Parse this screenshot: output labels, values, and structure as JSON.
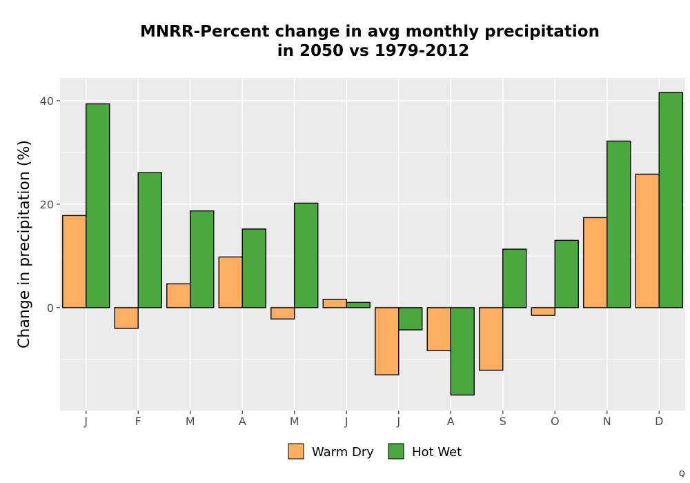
{
  "chart_data": {
    "type": "bar",
    "title_line1": "MNRR-Percent change in avg monthly precipitation",
    "title_line2": "in 2050 vs 1979-2012",
    "xlabel": "",
    "ylabel": "Change in precipitation (%)",
    "categories": [
      "J",
      "F",
      "M",
      "A",
      "M",
      "J",
      "J",
      "A",
      "S",
      "O",
      "N",
      "D"
    ],
    "series": [
      {
        "name": "Warm Dry",
        "color": "#fdae61",
        "values": [
          17.8,
          -4.0,
          4.6,
          9.8,
          -2.2,
          1.6,
          -13.0,
          -8.3,
          -12.1,
          -1.5,
          17.4,
          25.8
        ]
      },
      {
        "name": "Hot Wet",
        "color": "#4aa83f",
        "values": [
          39.4,
          26.1,
          18.7,
          15.2,
          20.2,
          1.0,
          -4.3,
          -16.9,
          11.3,
          13.0,
          32.2,
          41.6
        ]
      }
    ],
    "ylim": [
      -19.9,
      44.4
    ],
    "yticks": [
      0,
      20,
      40
    ],
    "grid": true,
    "legend_position": "bottom"
  },
  "corner_mark": "Q"
}
